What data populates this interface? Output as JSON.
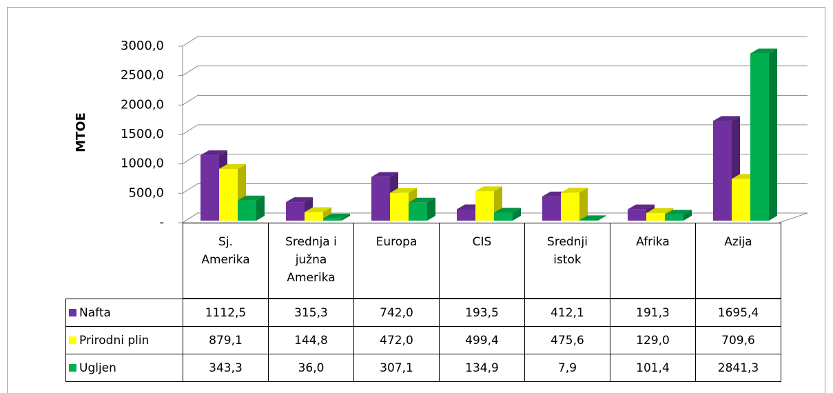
{
  "chart_data": {
    "type": "bar",
    "ylabel": "MTOE",
    "categories": [
      "Sj. Amerika",
      "Srednja i južna Amerika",
      "Europa",
      "CIS",
      "Srednji istok",
      "Afrika",
      "Azija"
    ],
    "series": [
      {
        "name": "Nafta",
        "color": "#7030a0",
        "values": [
          1112.5,
          315.3,
          742.0,
          193.5,
          412.1,
          191.3,
          1695.4
        ],
        "value_labels": [
          "1112,5",
          "315,3",
          "742,0",
          "193,5",
          "412,1",
          "191,3",
          "1695,4"
        ]
      },
      {
        "name": "Prirodni plin",
        "color": "#ffff00",
        "values": [
          879.1,
          144.8,
          472.0,
          499.4,
          475.6,
          129.0,
          709.6
        ],
        "value_labels": [
          "879,1",
          "144,8",
          "472,0",
          "499,4",
          "475,6",
          "129,0",
          "709,6"
        ]
      },
      {
        "name": "Ugljen",
        "color": "#00b050",
        "values": [
          343.3,
          36.0,
          307.1,
          134.9,
          7.9,
          101.4,
          2841.3
        ],
        "value_labels": [
          "343,3",
          "36,0",
          "307,1",
          "134,9",
          "7,9",
          "101,4",
          "2841,3"
        ]
      }
    ],
    "ylim": [
      0,
      3000
    ],
    "yticks": [
      {
        "value": 0,
        "label": "-"
      },
      {
        "value": 500,
        "label": "500,0"
      },
      {
        "value": 1000,
        "label": "1000,0"
      },
      {
        "value": 1500,
        "label": "1500,0"
      },
      {
        "value": 2000,
        "label": "2000,0"
      },
      {
        "value": 2500,
        "label": "2500,0"
      },
      {
        "value": 3000,
        "label": "3000,0"
      }
    ],
    "grid": true
  }
}
